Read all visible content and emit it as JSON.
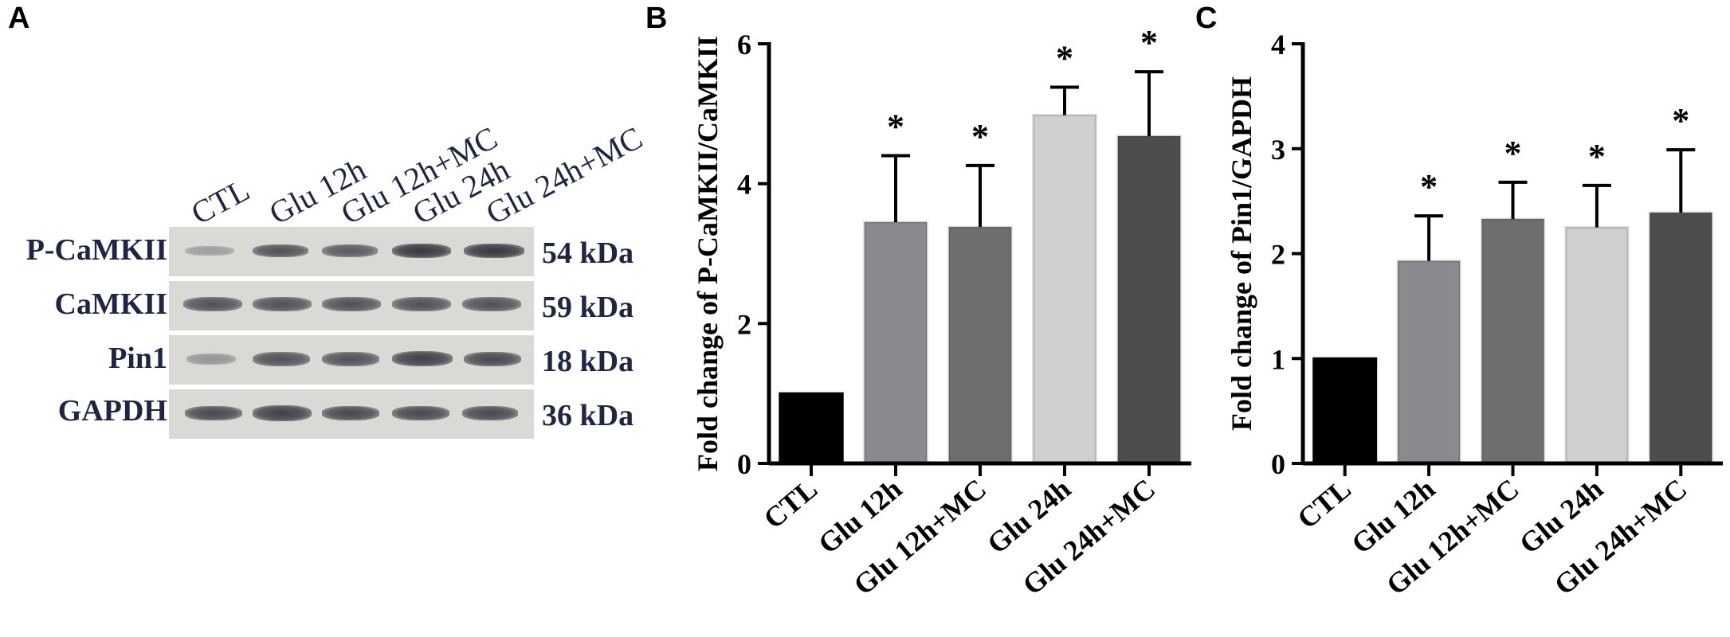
{
  "panels": {
    "a": "A",
    "b": "B",
    "c": "C"
  },
  "blot": {
    "lanes": [
      "CTL",
      "Glu 12h",
      "Glu 12h+MC",
      "Glu 24h",
      "Glu 24h+MC"
    ],
    "rows": [
      {
        "protein": "P-CaMKII",
        "kda": "54 kDa",
        "intensity": [
          0.35,
          0.8,
          0.75,
          0.95,
          0.95
        ]
      },
      {
        "protein": "CaMKII",
        "kda": "59 kDa",
        "intensity": [
          0.8,
          0.8,
          0.8,
          0.8,
          0.8
        ]
      },
      {
        "protein": "Pin1",
        "kda": "18 kDa",
        "intensity": [
          0.4,
          0.8,
          0.8,
          0.9,
          0.85
        ]
      },
      {
        "protein": "GAPDH",
        "kda": "36 kDa",
        "intensity": [
          0.85,
          0.9,
          0.85,
          0.85,
          0.85
        ]
      }
    ]
  },
  "colors": {
    "CTL": "#000000",
    "Glu 12h": "#8a8a8e",
    "Glu 12h+MC": "#6e6e70",
    "Glu 24h": "#cfcfcf",
    "Glu 24h+MC": "#4d4d4d"
  },
  "chart_data": [
    {
      "type": "bar",
      "ylabel": "Fold change of P-CaMKII/CaMKII",
      "categories": [
        "CTL",
        "Glu 12h",
        "Glu 12h+MC",
        "Glu 24h",
        "Glu 24h+MC"
      ],
      "values": [
        1.0,
        3.45,
        3.38,
        4.98,
        4.68
      ],
      "errors": [
        0,
        0.95,
        0.88,
        0.4,
        0.92
      ],
      "significance": [
        "",
        "*",
        "*",
        "*",
        "*"
      ],
      "ylim": [
        0,
        6
      ],
      "yticks": [
        0,
        2,
        4,
        6
      ]
    },
    {
      "type": "bar",
      "ylabel": "Fold change of Pin1/GAPDH",
      "categories": [
        "CTL",
        "Glu 12h",
        "Glu 12h+MC",
        "Glu 24h",
        "Glu 24h+MC"
      ],
      "values": [
        1.0,
        1.93,
        2.33,
        2.25,
        2.39
      ],
      "errors": [
        0,
        0.43,
        0.35,
        0.4,
        0.6
      ],
      "significance": [
        "",
        "*",
        "*",
        "*",
        "*"
      ],
      "ylim": [
        0,
        4
      ],
      "yticks": [
        0,
        1,
        2,
        3,
        4
      ]
    }
  ]
}
